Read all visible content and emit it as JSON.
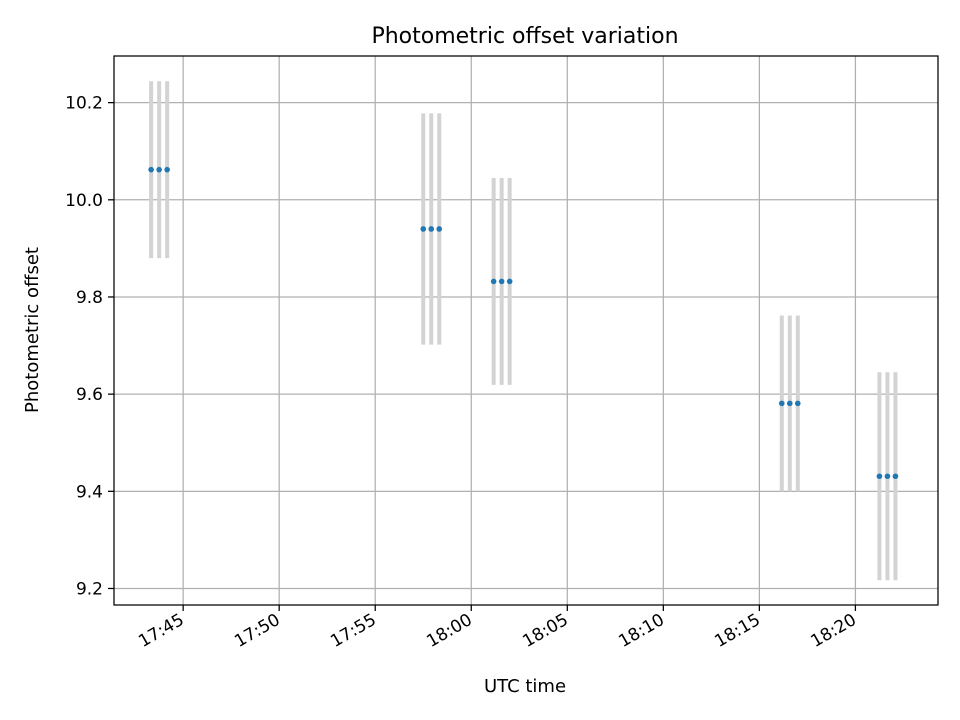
{
  "chart_data": {
    "type": "scatter",
    "title": "Photometric offset variation",
    "xlabel": "UTC time",
    "ylabel": "Photometric offset",
    "xlim": [
      "17:41:24",
      "18:24:18"
    ],
    "ylim": [
      9.166,
      10.296
    ],
    "x_ticks": [
      "17:45",
      "17:50",
      "17:55",
      "18:00",
      "18:05",
      "18:10",
      "18:15",
      "18:20"
    ],
    "y_ticks": [
      "9.2",
      "9.4",
      "9.6",
      "9.8",
      "10.0",
      "10.2"
    ],
    "grid": true,
    "colors": {
      "points": "#1f77b4",
      "errorbars": "#d3d3d3",
      "grid": "#b0b0b0"
    },
    "points": [
      {
        "x": "17:43:20",
        "y": 10.062,
        "err": 0.182
      },
      {
        "x": "17:43:45",
        "y": 10.062,
        "err": 0.182
      },
      {
        "x": "17:44:10",
        "y": 10.062,
        "err": 0.182
      },
      {
        "x": "17:57:30",
        "y": 9.94,
        "err": 0.238
      },
      {
        "x": "17:57:55",
        "y": 9.94,
        "err": 0.238
      },
      {
        "x": "17:58:20",
        "y": 9.94,
        "err": 0.238
      },
      {
        "x": "18:01:10",
        "y": 9.832,
        "err": 0.213
      },
      {
        "x": "18:01:35",
        "y": 9.832,
        "err": 0.213
      },
      {
        "x": "18:02:00",
        "y": 9.832,
        "err": 0.213
      },
      {
        "x": "18:16:10",
        "y": 9.581,
        "err": 0.181
      },
      {
        "x": "18:16:35",
        "y": 9.581,
        "err": 0.181
      },
      {
        "x": "18:17:00",
        "y": 9.581,
        "err": 0.181
      },
      {
        "x": "18:21:15",
        "y": 9.431,
        "err": 0.214
      },
      {
        "x": "18:21:40",
        "y": 9.431,
        "err": 0.214
      },
      {
        "x": "18:22:05",
        "y": 9.431,
        "err": 0.214
      }
    ]
  }
}
